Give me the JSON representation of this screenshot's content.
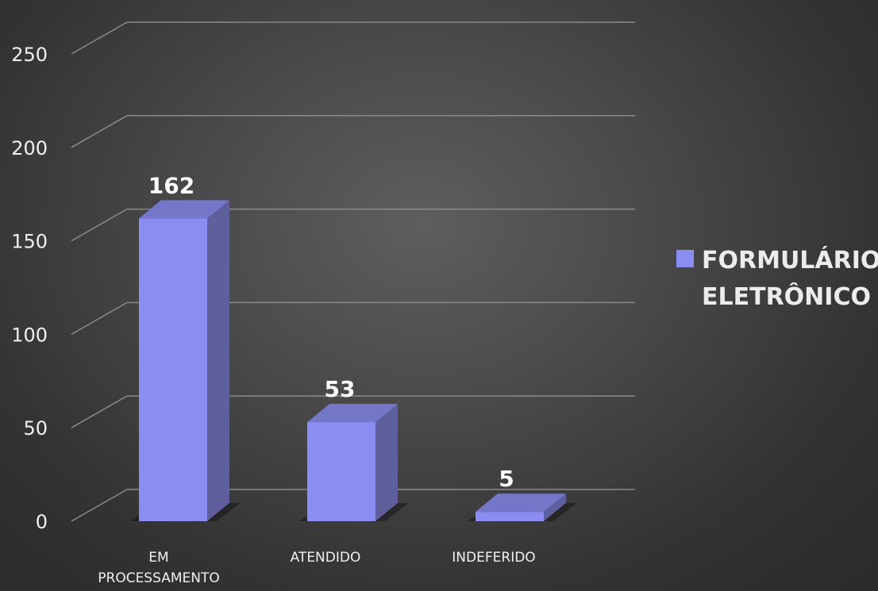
{
  "chart_data": {
    "type": "bar",
    "categories": [
      "EM PROCESSAMENTO",
      "ATENDIDO",
      "INDEFERIDO"
    ],
    "series": [
      {
        "name": "FORMULÁRIO ELETRÔNICO",
        "values": [
          162,
          53,
          5
        ]
      }
    ],
    "yticks": [
      0,
      50,
      100,
      150,
      200,
      250
    ],
    "ylim": [
      0,
      250
    ],
    "grid": true,
    "legend": "right",
    "three_d": true,
    "colors": {
      "bar_front": "#8b8ef0",
      "bar_side": "#5f5f9e",
      "bar_top": "#7476c8",
      "grid": "#8a8a8a",
      "tick_text": "#f0f0f0",
      "label_text": "#ffffff"
    }
  }
}
